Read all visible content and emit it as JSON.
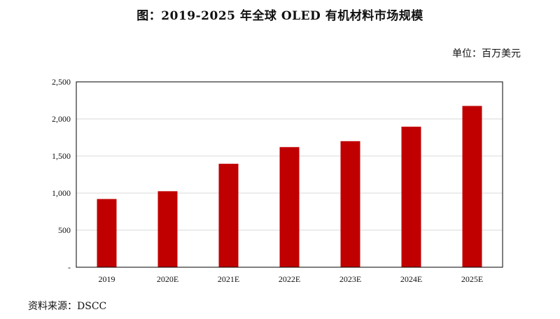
{
  "title": "图：2019-2025 年全球 OLED 有机材料市场规模",
  "unit": "单位：百万美元",
  "source": "资料来源：DSCC",
  "colors": {
    "bar": "#C00000",
    "grid": "#D9D9D9",
    "frame": "#000000"
  },
  "chart_data": {
    "type": "bar",
    "categories": [
      "2019",
      "2020E",
      "2021E",
      "2022E",
      "2023E",
      "2024E",
      "2025E"
    ],
    "values": [
      920,
      1025,
      1395,
      1620,
      1700,
      1895,
      2175
    ],
    "ylim": [
      0,
      2500
    ],
    "yticks": [
      0,
      500,
      1000,
      1500,
      2000,
      2500
    ],
    "ytick_labels": [
      "-",
      "500",
      "1,000",
      "1,500",
      "2,000",
      "2,500"
    ],
    "grid": true,
    "legend": "none"
  }
}
